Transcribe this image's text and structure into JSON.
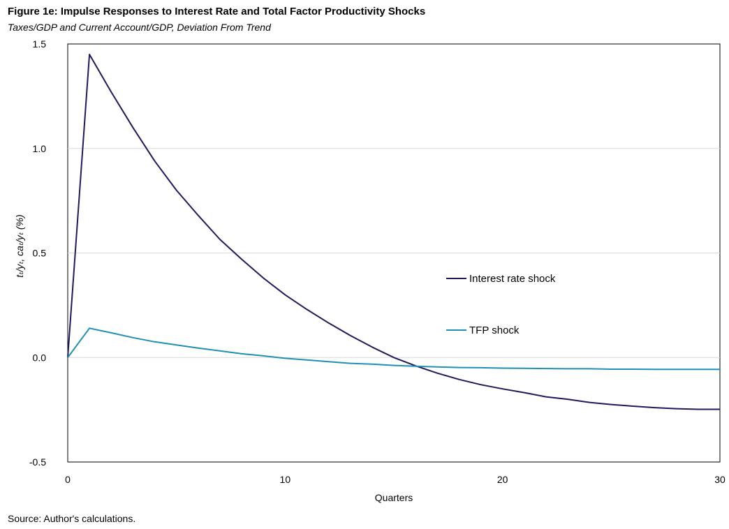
{
  "title": "Figure 1e: Impulse Responses to Interest Rate and Total Factor Productivity Shocks",
  "subtitle": "Taxes/GDP and Current Account/GDP, Deviation From Trend",
  "source": "Source: Author's calculations.",
  "chart_data": {
    "type": "line",
    "xlabel": "Quarters",
    "ylabel": "tₜ/yₜ, caₜ/yₜ (%)",
    "xlim": [
      0,
      30
    ],
    "ylim": [
      -0.5,
      1.5
    ],
    "x_ticks": [
      "0",
      "10",
      "20",
      "30"
    ],
    "y_ticks": [
      "-0.5",
      "0.0",
      "0.5",
      "1.0",
      "1.5"
    ],
    "x_tick_values": [
      0,
      10,
      20,
      30
    ],
    "y_tick_values": [
      -0.5,
      0.0,
      0.5,
      1.0,
      1.5
    ],
    "grid": "horizontal",
    "legend_position": "right-middle",
    "x": [
      0,
      1,
      2,
      3,
      4,
      5,
      6,
      7,
      8,
      9,
      10,
      11,
      12,
      13,
      14,
      15,
      16,
      17,
      18,
      19,
      20,
      21,
      22,
      23,
      24,
      25,
      26,
      27,
      28,
      29,
      30
    ],
    "series": [
      {
        "name": "Interest rate shock",
        "color": "#1f1a5c",
        "values": [
          0.0,
          1.45,
          1.27,
          1.1,
          0.94,
          0.8,
          0.68,
          0.565,
          0.47,
          0.38,
          0.3,
          0.23,
          0.165,
          0.105,
          0.05,
          0.0,
          -0.04,
          -0.075,
          -0.105,
          -0.13,
          -0.15,
          -0.168,
          -0.188,
          -0.2,
          -0.215,
          -0.225,
          -0.233,
          -0.24,
          -0.245,
          -0.248,
          -0.248
        ]
      },
      {
        "name": "TFP shock",
        "color": "#1f8fb5",
        "values": [
          0.0,
          0.14,
          0.118,
          0.095,
          0.075,
          0.06,
          0.045,
          0.032,
          0.018,
          0.008,
          -0.004,
          -0.012,
          -0.02,
          -0.028,
          -0.032,
          -0.038,
          -0.042,
          -0.045,
          -0.048,
          -0.049,
          -0.051,
          -0.052,
          -0.053,
          -0.054,
          -0.054,
          -0.056,
          -0.056,
          -0.057,
          -0.057,
          -0.057,
          -0.057
        ]
      }
    ]
  }
}
